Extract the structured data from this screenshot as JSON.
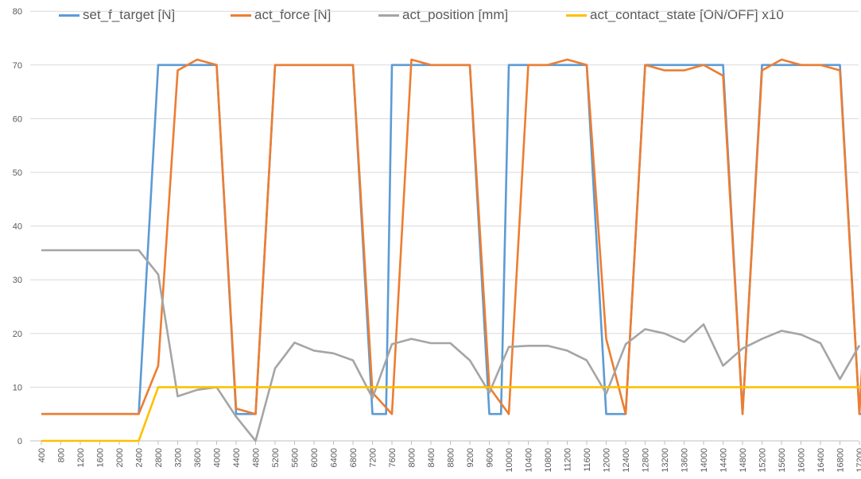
{
  "chart_data": {
    "type": "line",
    "title": "",
    "xlabel": "",
    "ylabel": "",
    "ylim": [
      0,
      80
    ],
    "yticks": [
      0,
      10,
      20,
      30,
      40,
      50,
      60,
      70,
      80
    ],
    "grid": "horizontal",
    "legend_position": "top",
    "x": [
      "400",
      "800",
      "1200",
      "1600",
      "2000",
      "2400",
      "2800",
      "3200",
      "3600",
      "4000",
      "4400",
      "4800",
      "5200",
      "5600",
      "6000",
      "6400",
      "6800",
      "7200",
      "7600",
      "8000",
      "8400",
      "8800",
      "9200",
      "9600",
      "10000",
      "10400",
      "10800",
      "11200",
      "11600",
      "12000",
      "12400",
      "12800",
      "13200",
      "13600",
      "14000",
      "14400",
      "14800",
      "15200",
      "15600",
      "16000",
      "16400",
      "16800",
      "17200"
    ],
    "series": [
      {
        "name": "set_f_target [N]",
        "color": "#5B9BD5",
        "points": [
          [
            0,
            5
          ],
          [
            4,
            5
          ],
          [
            5,
            5
          ],
          [
            6,
            70
          ],
          [
            9,
            70
          ],
          [
            10,
            5
          ],
          [
            11,
            5
          ],
          [
            12,
            70
          ],
          [
            16,
            70
          ],
          [
            17,
            5
          ],
          [
            17.7,
            5
          ],
          [
            18,
            70
          ],
          [
            22,
            70
          ],
          [
            23,
            5
          ],
          [
            23.6,
            5
          ],
          [
            24,
            70
          ],
          [
            28,
            70
          ],
          [
            29,
            5
          ],
          [
            30,
            5
          ],
          [
            31,
            70
          ],
          [
            35,
            70
          ],
          [
            36,
            5
          ],
          [
            37,
            70
          ],
          [
            41,
            70
          ],
          [
            42,
            5
          ],
          [
            42.6,
            5
          ],
          [
            43,
            70
          ]
        ]
      },
      {
        "name": "act_force [N]",
        "color": "#ED7D31",
        "points": [
          [
            0,
            5
          ],
          [
            4,
            5
          ],
          [
            5,
            5
          ],
          [
            6,
            14
          ],
          [
            7,
            69
          ],
          [
            8,
            71
          ],
          [
            9,
            70
          ],
          [
            10,
            6
          ],
          [
            11,
            5
          ],
          [
            12,
            70
          ],
          [
            13,
            70
          ],
          [
            14,
            70
          ],
          [
            15,
            70
          ],
          [
            16,
            70
          ],
          [
            17,
            9
          ],
          [
            18,
            5
          ],
          [
            19,
            71
          ],
          [
            20,
            70
          ],
          [
            21,
            70
          ],
          [
            22,
            70
          ],
          [
            23,
            10
          ],
          [
            24,
            5
          ],
          [
            25,
            70
          ],
          [
            26,
            70
          ],
          [
            27,
            71
          ],
          [
            28,
            70
          ],
          [
            29,
            19
          ],
          [
            30,
            5
          ],
          [
            31,
            70
          ],
          [
            32,
            69
          ],
          [
            33,
            69
          ],
          [
            34,
            70
          ],
          [
            35,
            68
          ],
          [
            36,
            5
          ],
          [
            37,
            69
          ],
          [
            38,
            71
          ],
          [
            39,
            70
          ],
          [
            40,
            70
          ],
          [
            41,
            69
          ],
          [
            42,
            5
          ],
          [
            43,
            70
          ]
        ]
      },
      {
        "name": "act_position [mm]",
        "color": "#A5A5A5",
        "points": [
          [
            0,
            35.5
          ],
          [
            1,
            35.5
          ],
          [
            2,
            35.5
          ],
          [
            3,
            35.5
          ],
          [
            4,
            35.5
          ],
          [
            5,
            35.5
          ],
          [
            6,
            31
          ],
          [
            7,
            8.3
          ],
          [
            8,
            9.5
          ],
          [
            9,
            10
          ],
          [
            10,
            4.5
          ],
          [
            11,
            0
          ],
          [
            12,
            13.5
          ],
          [
            13,
            18.3
          ],
          [
            14,
            16.8
          ],
          [
            15,
            16.3
          ],
          [
            16,
            15
          ],
          [
            17,
            8
          ],
          [
            18,
            18
          ],
          [
            19,
            19
          ],
          [
            20,
            18.2
          ],
          [
            21,
            18.2
          ],
          [
            22,
            15
          ],
          [
            23,
            9
          ],
          [
            24,
            17.5
          ],
          [
            25,
            17.7
          ],
          [
            26,
            17.7
          ],
          [
            27,
            16.8
          ],
          [
            28,
            15
          ],
          [
            29,
            8.8
          ],
          [
            30,
            18
          ],
          [
            31,
            20.8
          ],
          [
            32,
            20
          ],
          [
            33,
            18.4
          ],
          [
            34,
            21.7
          ],
          [
            35,
            14
          ],
          [
            36,
            17.2
          ],
          [
            37,
            19
          ],
          [
            38,
            20.5
          ],
          [
            39,
            19.8
          ],
          [
            40,
            18.2
          ],
          [
            41,
            11.5
          ],
          [
            42,
            17.8
          ]
        ]
      },
      {
        "name": "act_contact_state  [ON/OFF] x10",
        "color": "#FFC000",
        "points": [
          [
            0,
            0
          ],
          [
            5,
            0
          ],
          [
            6,
            10
          ],
          [
            43,
            10
          ]
        ]
      }
    ]
  }
}
